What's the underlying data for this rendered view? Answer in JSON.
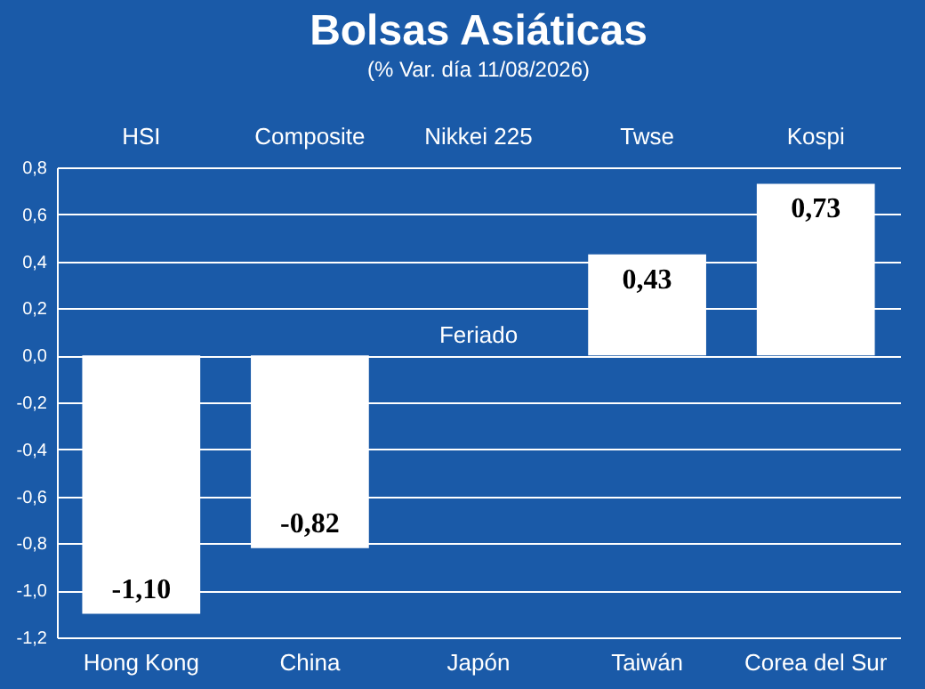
{
  "chart_data": {
    "type": "bar",
    "title": "Bolsas Asiáticas",
    "subtitle": "(% Var. día 11/08/2026)",
    "categories": [
      "Hong Kong",
      "China",
      "Japón",
      "Taiwán",
      "Corea del Sur"
    ],
    "values": [
      -1.1,
      -0.82,
      null,
      0.43,
      0.73
    ],
    "value_labels": [
      "-1,10",
      "-0,82",
      null,
      "0,43",
      "0,73"
    ],
    "color": "#ffffff",
    "ylim": [
      -1.2,
      0.8
    ],
    "yticks": [
      {
        "value": -1.2,
        "label": "-1,2"
      },
      {
        "value": -1.0,
        "label": "-1,0"
      },
      {
        "value": -0.8,
        "label": "-0,8"
      },
      {
        "value": -0.6,
        "label": "-0,6"
      },
      {
        "value": -0.4,
        "label": "-0,4"
      },
      {
        "value": -0.2,
        "label": "-0,2"
      },
      {
        "value": 0,
        "label": "0,0"
      },
      {
        "value": 0.2,
        "label": "0,2"
      },
      {
        "value": 0.4,
        "label": "0,4"
      },
      {
        "value": 0.6,
        "label": "0,6"
      },
      {
        "value": 0.8,
        "label": "0,8"
      }
    ],
    "grid": "y",
    "annotations": [
      "HSI",
      "Composite",
      "Nikkei 225",
      "Twse",
      "Kospi",
      "Feriado"
    ]
  }
}
